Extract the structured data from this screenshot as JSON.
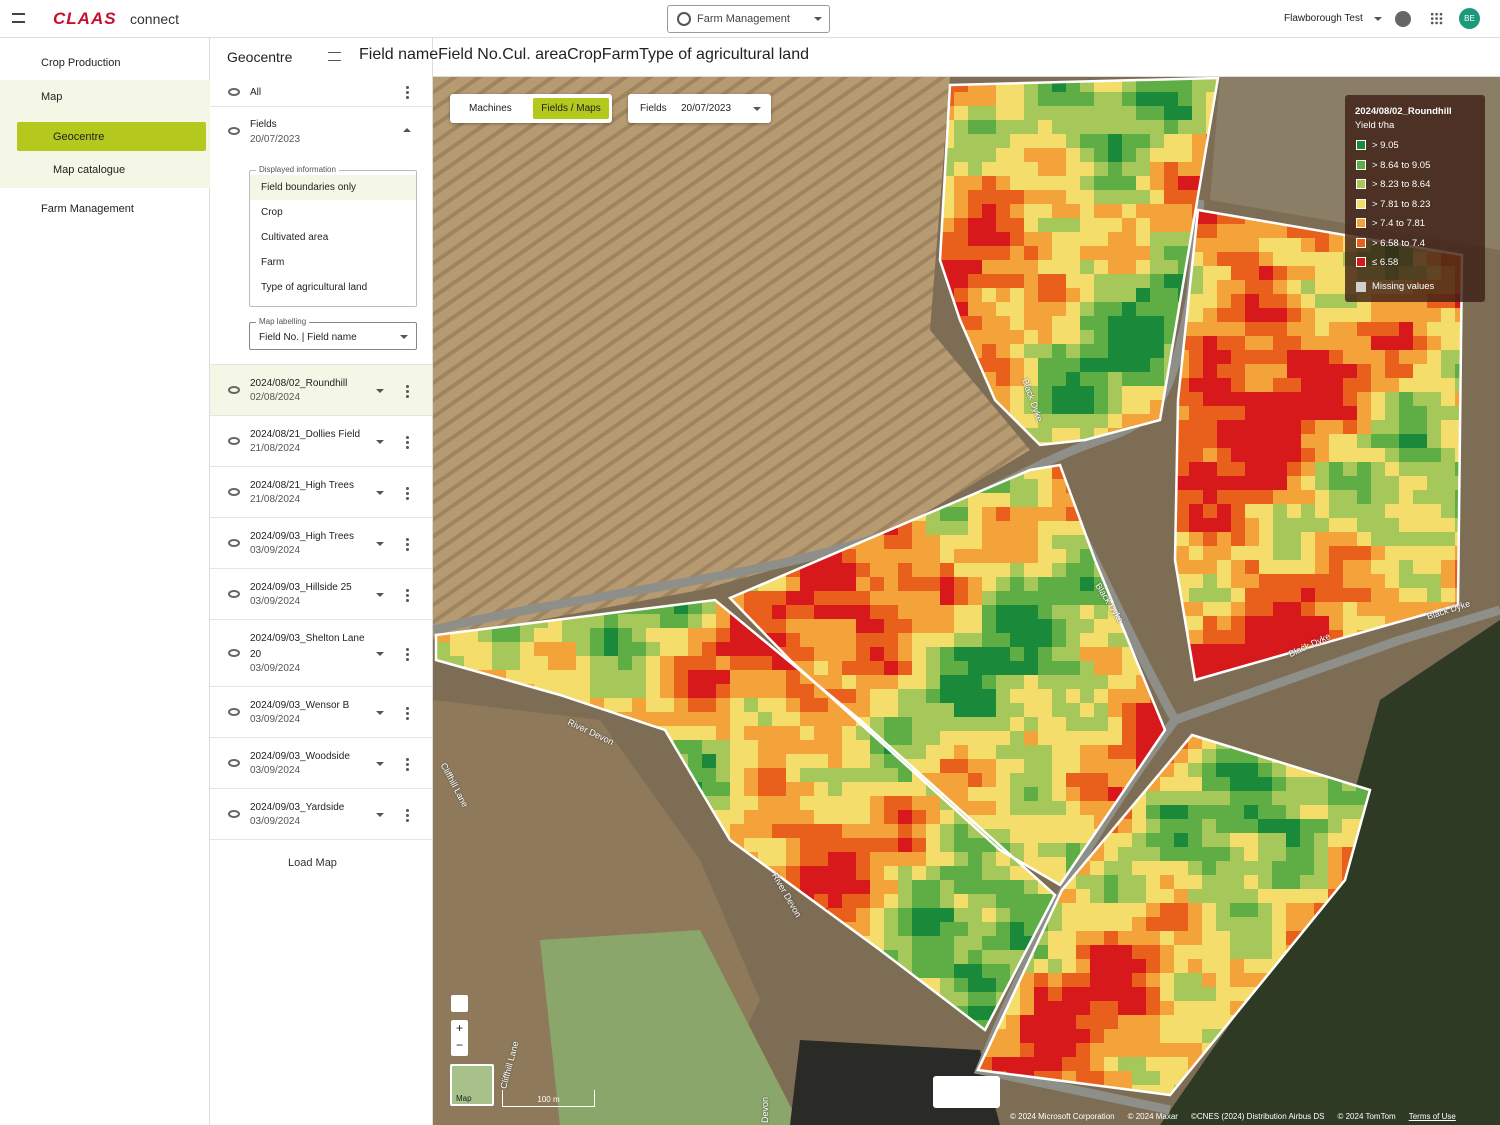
{
  "header": {
    "brand": "CLAAS",
    "app": "connect",
    "module": "Farm Management",
    "account": "Flawborough Test",
    "avatar": "BE"
  },
  "nav": [
    "Crop Production",
    "Map",
    "Geocentre",
    "Map catalogue",
    "Farm Management"
  ],
  "panel": {
    "title": "Geocentre",
    "filters": [
      "Field name",
      "Field No.",
      "Cul. area",
      "Crop",
      "Farm",
      "Type of agricultural land"
    ],
    "all": "All",
    "fields": {
      "label": "Fields",
      "date": "20/07/2023",
      "displayed_information": {
        "label": "Displayed information",
        "options": [
          "Field boundaries only",
          "Crop",
          "Cultivated area",
          "Farm",
          "Type of agricultural land"
        ]
      },
      "map_labelling": {
        "label": "Map labelling",
        "value": "Field No. | Field name"
      }
    },
    "layers": [
      {
        "name": "2024/08/02_Roundhill",
        "date": "02/08/2024"
      },
      {
        "name": "2024/08/21_Dollies Field",
        "date": "21/08/2024"
      },
      {
        "name": "2024/08/21_High Trees",
        "date": "21/08/2024"
      },
      {
        "name": "2024/09/03_High Trees",
        "date": "03/09/2024"
      },
      {
        "name": "2024/09/03_Hillside 25",
        "date": "03/09/2024"
      },
      {
        "name": "2024/09/03_Shelton Lane 20",
        "date": "03/09/2024"
      },
      {
        "name": "2024/09/03_Wensor B",
        "date": "03/09/2024"
      },
      {
        "name": "2024/09/03_Woodside",
        "date": "03/09/2024"
      },
      {
        "name": "2024/09/03_Yardside",
        "date": "03/09/2024"
      }
    ],
    "load_map": "Load Map"
  },
  "map": {
    "tabs": [
      "Machines",
      "Fields / Maps"
    ],
    "fields_select": {
      "label": "Fields",
      "value": "20/07/2023"
    },
    "legend": {
      "title": "2024/08/02_Roundhill",
      "unit": "Yield t/ha",
      "items": [
        {
          "label": "> 9.05",
          "color": "#1a8a3a"
        },
        {
          "label": "> 8.64 to 9.05",
          "color": "#5fae45"
        },
        {
          "label": "> 8.23 to 8.64",
          "color": "#a6c75a"
        },
        {
          "label": "> 7.81 to 8.23",
          "color": "#f5dd6b"
        },
        {
          "label": "> 7.4 to 7.81",
          "color": "#f4a23a"
        },
        {
          "label": "> 6.58 to 7.4",
          "color": "#e8601c"
        },
        {
          "label": "≤ 6.58",
          "color": "#d7191c"
        }
      ],
      "missing": {
        "label": "Missing values",
        "color": "#d0d0d0"
      }
    },
    "labels": [
      "Black Dyke",
      "Black Dyke",
      "Black Dyke",
      "Black Dyke",
      "River Devon",
      "River Devon",
      "Cliffhill Lane",
      "Cliffhill Lane",
      "Devon"
    ],
    "mini_map": "Map",
    "scale": "100 m",
    "attribution": [
      "© 2024 Microsoft Corporation",
      "© 2024 Maxar",
      "©CNES (2024) Distribution Airbus DS",
      "© 2024 TomTom"
    ],
    "terms": "Terms of Use"
  }
}
